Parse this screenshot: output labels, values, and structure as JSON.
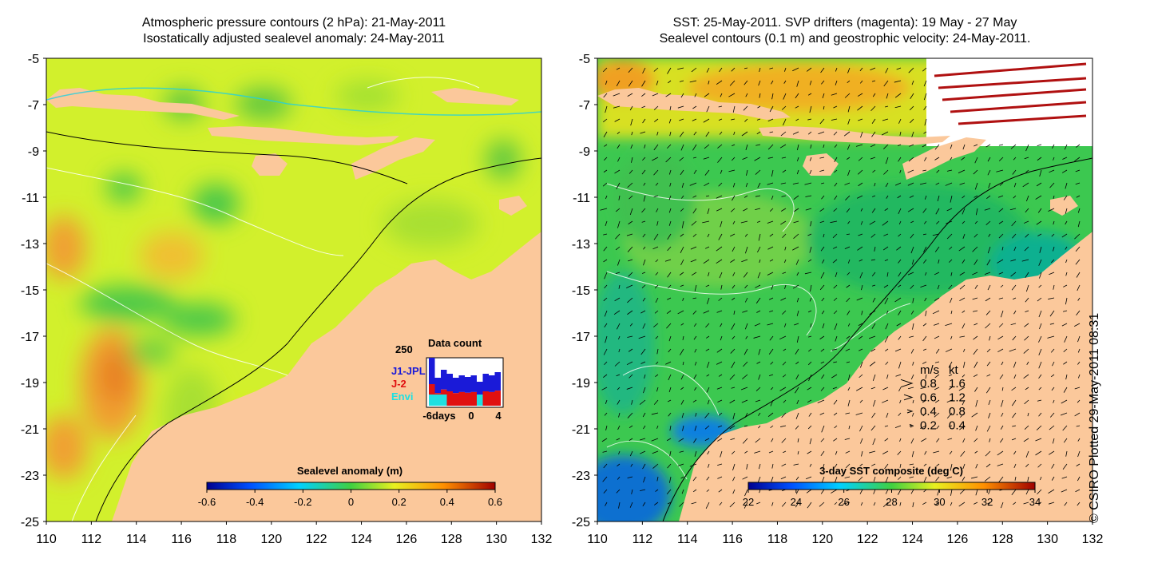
{
  "left_panel": {
    "title_line1": "Atmospheric pressure contours (2 hPa): 21-May-2011",
    "title_line2": "Isostatically adjusted sealevel anomaly: 24-May-2011",
    "colorbar_label": "Sealevel anomaly (m)",
    "colorbar_ticks": [
      "-0.6",
      "-0.4",
      "-0.2",
      "0",
      "0.2",
      "0.4",
      "0.6"
    ],
    "data_count": {
      "title": "Data count",
      "y_max_label": "250",
      "x_labels": [
        "-6days",
        "0",
        "4"
      ],
      "legend": [
        {
          "name": "J1-JPL",
          "color": "#1a1ad8"
        },
        {
          "name": "J-2",
          "color": "#e01010"
        },
        {
          "name": "Envi",
          "color": "#20e0e0"
        }
      ]
    }
  },
  "right_panel": {
    "title_line1": "SST: 25-May-2011. SVP drifters (magenta): 19 May - 27 May",
    "title_line2": "Sealevel contours (0.1 m) and geostrophic velocity: 24-May-2011.",
    "colorbar_label": "3-day SST composite (deg C)",
    "colorbar_ticks": [
      "22",
      "24",
      "26",
      "28",
      "30",
      "32",
      "34"
    ],
    "speed_legend": {
      "header_ms": "m/s",
      "header_kt": "kt",
      "rows": [
        {
          "ms": "0.8",
          "kt": "1.6"
        },
        {
          "ms": "0.6",
          "kt": "1.2"
        },
        {
          "ms": "0.4",
          "kt": "0.8"
        },
        {
          "ms": "0.2",
          "kt": "0.4"
        }
      ]
    }
  },
  "y_ticks": [
    "-5",
    "-7",
    "-9",
    "-11",
    "-13",
    "-15",
    "-17",
    "-19",
    "-21",
    "-23",
    "-25"
  ],
  "x_ticks": [
    "110",
    "112",
    "114",
    "116",
    "118",
    "120",
    "122",
    "124",
    "126",
    "128",
    "130",
    "132"
  ],
  "credit": "© CSIRO Plotted 29-May-2011 08:31",
  "colors": {
    "land": "#fbc89b",
    "sla_base": "#d2f02c",
    "sst_base": "#3cc850"
  }
}
